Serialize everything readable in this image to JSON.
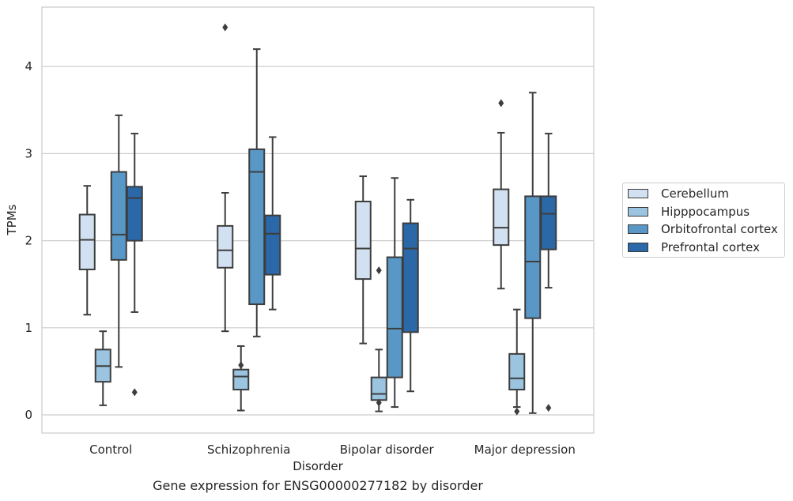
{
  "caption": "Gene expression for ENSG00000277182 by disorder",
  "chart_data": {
    "type": "box",
    "xlabel": "Disorder",
    "ylabel": "TPMs",
    "categories": [
      "Control",
      "Schizophrenia",
      "Bipolar disorder",
      "Major depression"
    ],
    "yticks": [
      0,
      1,
      2,
      3,
      4
    ],
    "ylim": [
      -0.2,
      4.7
    ],
    "grid": "horizontal",
    "legend_position": "right",
    "series": [
      {
        "name": "Cerebellum",
        "color": "#d2e1f1",
        "boxes": [
          {
            "whislo": 1.15,
            "q1": 1.67,
            "med": 2.01,
            "q3": 2.3,
            "whishi": 2.63,
            "fliers": []
          },
          {
            "whislo": 0.96,
            "q1": 1.69,
            "med": 1.89,
            "q3": 2.17,
            "whishi": 2.55,
            "fliers": [
              4.45
            ]
          },
          {
            "whislo": 0.82,
            "q1": 1.56,
            "med": 1.91,
            "q3": 2.45,
            "whishi": 2.74,
            "fliers": []
          },
          {
            "whislo": 1.45,
            "q1": 1.95,
            "med": 2.15,
            "q3": 2.59,
            "whishi": 3.24,
            "fliers": [
              3.58
            ]
          }
        ]
      },
      {
        "name": "Hipppocampus",
        "color": "#9ac4df",
        "boxes": [
          {
            "whislo": 0.11,
            "q1": 0.38,
            "med": 0.56,
            "q3": 0.75,
            "whishi": 0.96,
            "fliers": []
          },
          {
            "whislo": 0.05,
            "q1": 0.29,
            "med": 0.44,
            "q3": 0.52,
            "whishi": 0.79,
            "fliers": [
              0.57
            ]
          },
          {
            "whislo": 0.04,
            "q1": 0.17,
            "med": 0.24,
            "q3": 0.43,
            "whishi": 0.75,
            "fliers": [
              0.14,
              1.66
            ]
          },
          {
            "whislo": 0.09,
            "q1": 0.29,
            "med": 0.42,
            "q3": 0.7,
            "whishi": 1.21,
            "fliers": [
              0.04
            ]
          }
        ]
      },
      {
        "name": "Orbitofrontal cortex",
        "color": "#5897c6",
        "boxes": [
          {
            "whislo": 0.55,
            "q1": 1.78,
            "med": 2.07,
            "q3": 2.79,
            "whishi": 3.44,
            "fliers": []
          },
          {
            "whislo": 0.9,
            "q1": 1.27,
            "med": 2.79,
            "q3": 3.05,
            "whishi": 4.2,
            "fliers": []
          },
          {
            "whislo": 0.09,
            "q1": 0.43,
            "med": 0.99,
            "q3": 1.81,
            "whishi": 2.72,
            "fliers": []
          },
          {
            "whislo": 0.02,
            "q1": 1.11,
            "med": 1.76,
            "q3": 2.51,
            "whishi": 3.7,
            "fliers": []
          }
        ]
      },
      {
        "name": "Prefrontal cortex",
        "color": "#2b68a8",
        "boxes": [
          {
            "whislo": 1.18,
            "q1": 2.0,
            "med": 2.49,
            "q3": 2.62,
            "whishi": 3.23,
            "fliers": [
              0.26
            ]
          },
          {
            "whislo": 1.21,
            "q1": 1.61,
            "med": 2.08,
            "q3": 2.29,
            "whishi": 3.19,
            "fliers": []
          },
          {
            "whislo": 0.27,
            "q1": 0.95,
            "med": 1.91,
            "q3": 2.2,
            "whishi": 2.47,
            "fliers": []
          },
          {
            "whislo": 1.46,
            "q1": 1.9,
            "med": 2.31,
            "q3": 2.51,
            "whishi": 3.23,
            "fliers": [
              0.08
            ]
          }
        ]
      }
    ]
  }
}
